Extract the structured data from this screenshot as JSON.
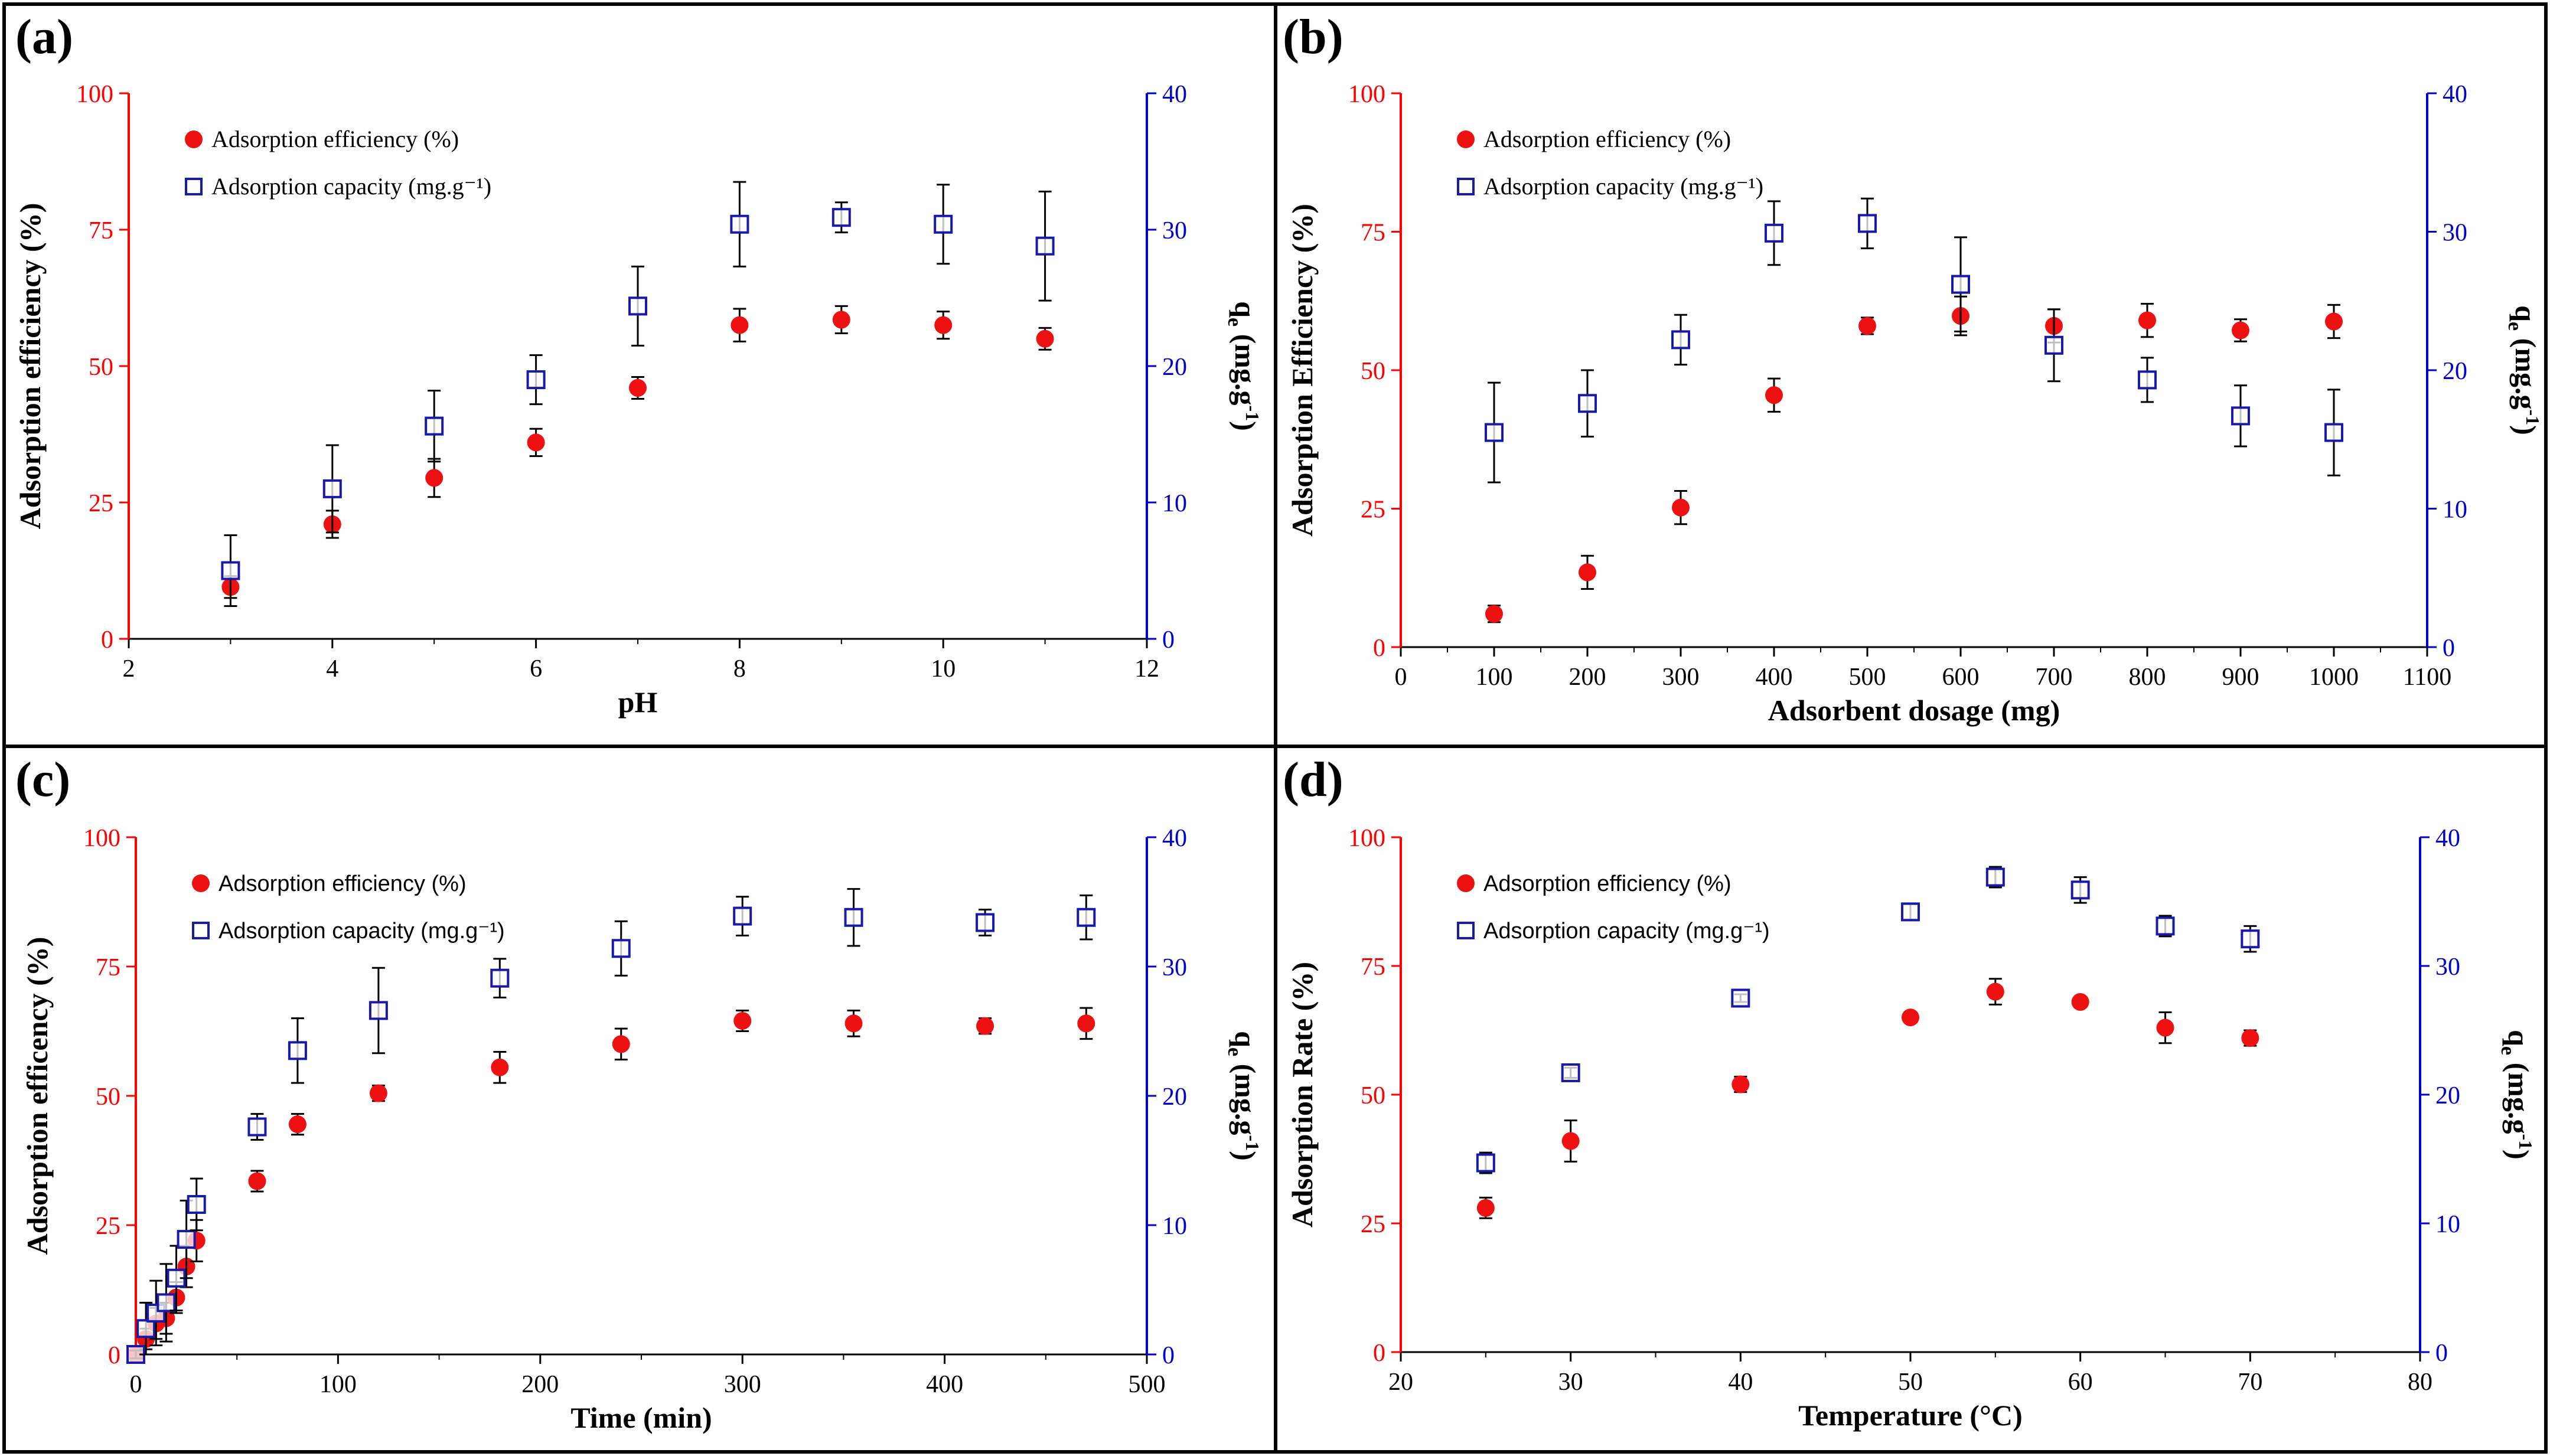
{
  "colors": {
    "left_axis": "#ff0000",
    "right_axis": "#0000cc",
    "efficiency_marker": "#ee1111",
    "capacity_marker": "#1a1aaa",
    "error_bar": "#000000",
    "frame": "#000000"
  },
  "chart_data": [
    {
      "type": "scatter",
      "panel": "(a)",
      "xlabel": "pH",
      "ylabel": "Adsorption efficiency (%)",
      "ylabel2_main": "q",
      "ylabel2_sub": "e",
      "ylabel2_rest": " (mg.g",
      "ylabel2_sup": "-1",
      "ylabel2_close": ")",
      "xlim": [
        2,
        12
      ],
      "xticks": [
        2,
        4,
        6,
        8,
        10,
        12
      ],
      "ylim": [
        0,
        100
      ],
      "yticks": [
        0,
        25,
        50,
        75,
        100
      ],
      "y2lim": [
        0,
        40
      ],
      "y2ticks": [
        0,
        10,
        20,
        30,
        40
      ],
      "legend_efficiency": "Adsorption efficiency (%)",
      "legend_capacity": "Adsorption capacity (mg.g⁻¹)",
      "series": [
        {
          "name": "Adsorption efficiency (%)",
          "axis": "left",
          "x": [
            3,
            4,
            5,
            6,
            7,
            8,
            9,
            10,
            11
          ],
          "values": [
            9.5,
            21,
            29.5,
            36,
            46,
            57.5,
            58.5,
            57.5,
            55
          ],
          "err": [
            2,
            2.5,
            3.5,
            2.5,
            2,
            3,
            2.5,
            2.5,
            2
          ]
        },
        {
          "name": "Adsorption capacity (mg.g⁻¹)",
          "axis": "right",
          "x": [
            3,
            4,
            5,
            6,
            7,
            8,
            9,
            10,
            11
          ],
          "values": [
            5,
            11,
            15.6,
            19,
            24.4,
            30.4,
            30.9,
            30.4,
            28.8
          ],
          "err": [
            2.6,
            3.2,
            2.6,
            1.8,
            2.9,
            3.1,
            1.1,
            2.9,
            4
          ]
        }
      ]
    },
    {
      "type": "scatter",
      "panel": "(b)",
      "xlabel": "Adsorbent dosage (mg)",
      "ylabel": "Adsorption Efficiency (%)",
      "ylabel2_main": "q",
      "ylabel2_sub": "e",
      "ylabel2_rest": " (mg.g",
      "ylabel2_sup": "-1",
      "ylabel2_close": ")",
      "xlim": [
        0,
        1100
      ],
      "xticks": [
        0,
        100,
        200,
        300,
        400,
        500,
        600,
        700,
        800,
        900,
        1000,
        1100
      ],
      "ylim": [
        0,
        100
      ],
      "yticks": [
        0,
        25,
        50,
        75,
        100
      ],
      "y2lim": [
        0,
        40
      ],
      "y2ticks": [
        0,
        10,
        20,
        30,
        40
      ],
      "legend_efficiency": "Adsorption efficiency (%)",
      "legend_capacity": "Adsorption capacity (mg.g⁻¹)",
      "series": [
        {
          "name": "Adsorption efficiency (%)",
          "axis": "left",
          "x": [
            100,
            200,
            300,
            400,
            500,
            600,
            700,
            800,
            900,
            1000
          ],
          "values": [
            6,
            13.5,
            25.2,
            45.5,
            58,
            59.8,
            58,
            59,
            57.2,
            58.8
          ],
          "err": [
            1.5,
            3,
            3,
            3,
            1.5,
            3.5,
            3,
            3,
            2,
            3
          ]
        },
        {
          "name": "Adsorption capacity (mg.g⁻¹)",
          "axis": "right",
          "x": [
            100,
            200,
            300,
            400,
            500,
            600,
            700,
            800,
            900,
            1000
          ],
          "values": [
            15.5,
            17.6,
            22.2,
            29.9,
            30.6,
            26.2,
            21.8,
            19.3,
            16.7,
            15.5
          ],
          "err": [
            3.6,
            2.4,
            1.8,
            2.3,
            1.8,
            3.4,
            2.6,
            1.6,
            2.2,
            3.1
          ]
        }
      ]
    },
    {
      "type": "scatter",
      "panel": "(c)",
      "xlabel": "Time (min)",
      "ylabel": "Adsorption efficency (%)",
      "ylabel2_main": "q",
      "ylabel2_sub": "e",
      "ylabel2_rest": " (mg.g",
      "ylabel2_sup": "-1",
      "ylabel2_close": ")",
      "xlim": [
        0,
        500
      ],
      "xticks": [
        0,
        100,
        200,
        300,
        400,
        500
      ],
      "ylim": [
        0,
        100
      ],
      "yticks": [
        0,
        25,
        50,
        75,
        100
      ],
      "y2lim": [
        0,
        40
      ],
      "y2ticks": [
        0,
        10,
        20,
        30,
        40
      ],
      "legend_efficiency": "Adsorption efficiency (%)",
      "legend_capacity": "Adsorption capacity (mg.g⁻¹)",
      "series": [
        {
          "name": "Adsorption efficiency (%)",
          "axis": "left",
          "x": [
            0,
            5,
            10,
            15,
            20,
            25,
            30,
            60,
            80,
            120,
            180,
            240,
            300,
            355,
            420,
            470
          ],
          "values": [
            0,
            3,
            6,
            7,
            11,
            17,
            22,
            33.5,
            44.5,
            50.5,
            55.5,
            60,
            64.5,
            64,
            63.5,
            64
          ],
          "err": [
            0.5,
            2,
            3,
            3,
            3,
            4,
            4,
            2,
            2,
            1.5,
            3,
            3,
            2,
            2.5,
            1.5,
            3
          ]
        },
        {
          "name": "Adsorption capacity (mg.g⁻¹)",
          "axis": "right",
          "x": [
            0,
            5,
            10,
            15,
            20,
            25,
            30,
            60,
            80,
            120,
            180,
            240,
            300,
            355,
            420,
            470
          ],
          "values": [
            0,
            2,
            3.2,
            4,
            5.9,
            8.9,
            11.6,
            17.6,
            23.5,
            26.6,
            29.1,
            31.4,
            33.9,
            33.8,
            33.4,
            33.8
          ],
          "err": [
            0.3,
            2,
            2.5,
            3,
            2.5,
            3,
            2,
            1,
            2.5,
            3.3,
            1.5,
            2.1,
            1.5,
            2.2,
            1,
            1.7
          ]
        }
      ]
    },
    {
      "type": "scatter",
      "panel": "(d)",
      "xlabel": "Temperature (°C)",
      "ylabel": "Adsorption Rate (%)",
      "ylabel2_main": "q",
      "ylabel2_sub": "e",
      "ylabel2_rest": " (mg.g",
      "ylabel2_sup": "-1",
      "ylabel2_close": ")",
      "xlim": [
        20,
        80
      ],
      "xticks": [
        20,
        30,
        40,
        50,
        60,
        70,
        80
      ],
      "ylim": [
        0,
        100
      ],
      "yticks": [
        0,
        25,
        50,
        75,
        100
      ],
      "y2lim": [
        0,
        40
      ],
      "y2ticks": [
        0,
        10,
        20,
        30,
        40
      ],
      "legend_efficiency": "Adsorption efficiency (%)",
      "legend_capacity": "Adsorption capacity (mg.g⁻¹)",
      "series": [
        {
          "name": "Adsorption efficiency (%)",
          "axis": "left",
          "x": [
            25,
            30,
            40,
            50,
            55,
            60,
            65,
            70
          ],
          "values": [
            28,
            41,
            52,
            65,
            70,
            68,
            63,
            61
          ],
          "err": [
            2,
            4,
            1.5,
            0.5,
            2.5,
            1,
            3,
            1.5
          ]
        },
        {
          "name": "Adsorption capacity (mg.g⁻¹)",
          "axis": "right",
          "x": [
            25,
            30,
            40,
            50,
            55,
            60,
            65,
            70
          ],
          "values": [
            14.7,
            21.7,
            27.5,
            34.2,
            36.9,
            35.9,
            33.1,
            32.1
          ],
          "err": [
            0.8,
            0.4,
            0.3,
            0.6,
            0.8,
            1,
            0.8,
            1
          ]
        }
      ]
    }
  ]
}
